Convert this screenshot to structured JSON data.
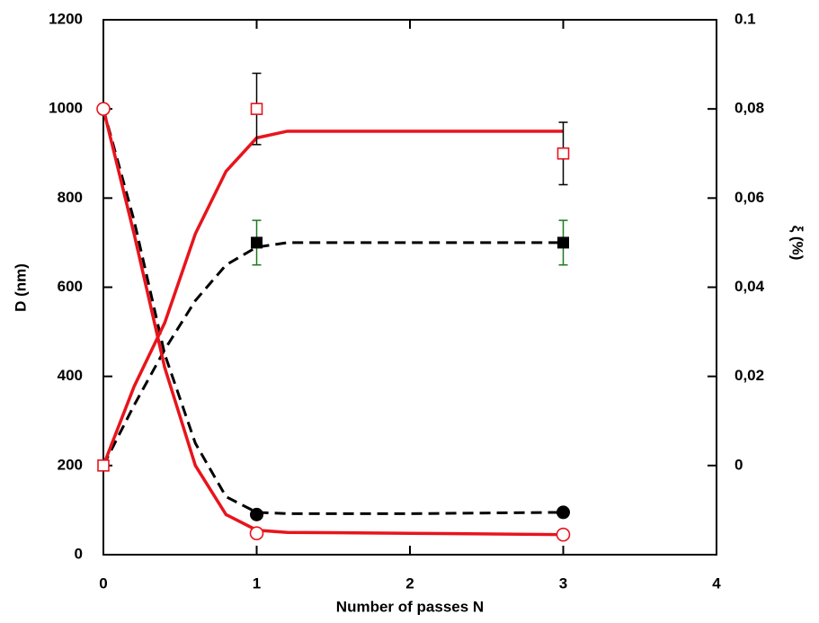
{
  "chart_data": {
    "type": "line",
    "x_label": "Number of passes N",
    "y_label": "D (nm)",
    "y2_label": "ξ (%)",
    "xlim": [
      0,
      4
    ],
    "xticks": [
      0,
      1,
      2,
      3,
      4
    ],
    "ylim": [
      0,
      1200
    ],
    "yticks": [
      0,
      200,
      400,
      600,
      800,
      1000,
      1200
    ],
    "y2lim": [
      -0.02,
      0.1
    ],
    "y2ticks": [
      0,
      {
        "value": 0.02,
        "label": "0,02"
      },
      {
        "value": 0.04,
        "label": "0,04"
      },
      {
        "value": 0.06,
        "label": "0,06"
      },
      {
        "value": 0.08,
        "label": "0,08"
      },
      0.1
    ],
    "series": [
      {
        "color": "#000000",
        "marker": "circle",
        "filled": true,
        "axis": "y",
        "x": [
          0,
          1,
          3
        ],
        "values": [
          1000,
          90,
          95
        ]
      },
      {
        "color": "#e8141c",
        "marker": "circle",
        "filled": false,
        "axis": "y",
        "x": [
          0,
          1,
          3
        ],
        "values": [
          1000,
          48,
          45
        ]
      },
      {
        "color": "#000000",
        "marker": "square",
        "filled": true,
        "axis": "y2",
        "x": [
          0,
          1,
          3
        ],
        "values": [
          0,
          0.05,
          0.05
        ],
        "errors": [
          null,
          0.005,
          0.005
        ],
        "error_color": "#1a7a1a"
      },
      {
        "color": "#e8141c",
        "marker": "square",
        "filled": false,
        "axis": "y2",
        "x": [
          0,
          1,
          3
        ],
        "values": [
          0,
          0.08,
          0.07
        ],
        "errors": [
          null,
          0.008,
          0.007
        ],
        "error_color": "#000000"
      }
    ],
    "fits": [
      {
        "color": "#000000",
        "dashed": true,
        "axis": "y",
        "x": [
          0,
          0.2,
          0.4,
          0.6,
          0.8,
          1,
          1.2,
          2,
          3
        ],
        "values": [
          1000,
          750,
          450,
          250,
          130,
          95,
          92,
          92,
          95
        ]
      },
      {
        "color": "#000000",
        "dashed": true,
        "axis": "y2",
        "x": [
          0,
          0.2,
          0.4,
          0.6,
          0.8,
          1,
          1.2,
          2,
          3
        ],
        "values": [
          0,
          0.0135,
          0.026,
          0.037,
          0.045,
          0.049,
          0.05,
          0.05,
          0.05
        ]
      },
      {
        "color": "#e8141c",
        "dashed": false,
        "axis": "y",
        "x": [
          0,
          0.2,
          0.4,
          0.6,
          0.8,
          1,
          1.2,
          2,
          3
        ],
        "values": [
          1000,
          720,
          420,
          200,
          90,
          55,
          50,
          48,
          45
        ]
      },
      {
        "color": "#e8141c",
        "dashed": false,
        "axis": "y2",
        "x": [
          0,
          0.2,
          0.4,
          0.6,
          0.8,
          1,
          1.2,
          2,
          3
        ],
        "values": [
          0,
          0.0177,
          0.032,
          0.052,
          0.066,
          0.0735,
          0.075,
          0.075,
          0.075
        ]
      }
    ]
  }
}
